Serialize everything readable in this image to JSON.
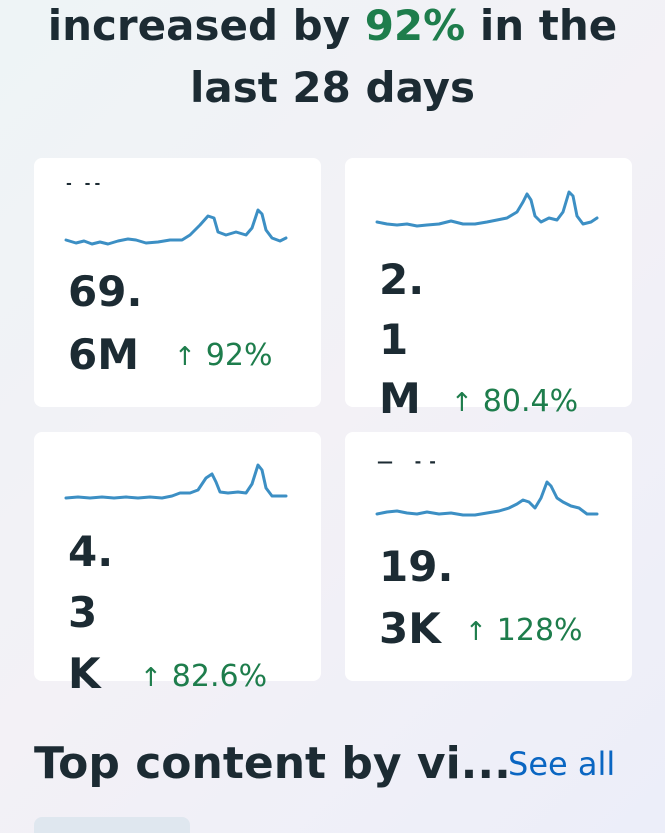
{
  "headline": {
    "prefix": "increased by ",
    "highlight": "92%",
    "suffix": " in the",
    "line2": "last 28 days"
  },
  "cards": [
    {
      "label": "- --",
      "value_lines": [
        "69.",
        "6M"
      ],
      "change": "92%",
      "arrow": "↑"
    },
    {
      "label": "",
      "value_lines": [
        "2.",
        "1",
        "M"
      ],
      "change": "80.4%",
      "arrow": "↑"
    },
    {
      "label": "",
      "value_lines": [
        "4.",
        "3",
        "K"
      ],
      "change": "82.6%",
      "arrow": "↑"
    },
    {
      "label": "— --",
      "value_lines": [
        "19.",
        "3K"
      ],
      "change": "128%",
      "arrow": "↑"
    }
  ],
  "section": {
    "title": "Top content by vi...",
    "see_all": "See all"
  },
  "colors": {
    "accent_green": "#1e7d4c",
    "link_blue": "#0a66c2",
    "sparkline": "#3c8fc4"
  }
}
